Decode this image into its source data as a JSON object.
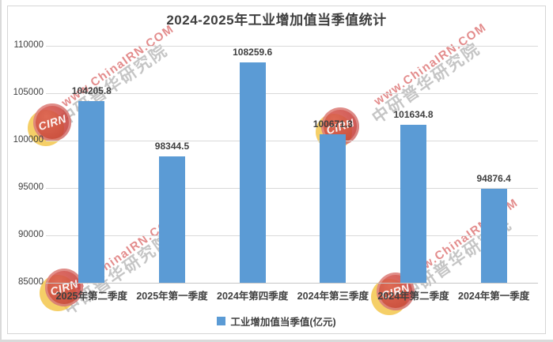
{
  "chart_data": {
    "type": "bar",
    "title": "2024-2025年工业增加值当季值统计",
    "categories": [
      "2025年第二季度",
      "2025年第一季度",
      "2024年第四季度",
      "2024年第三季度",
      "2024年第二季度",
      "2024年第一季度"
    ],
    "series": [
      {
        "name": "工业增加值当季值(亿元)",
        "values": [
          104205.8,
          98344.5,
          108259.6,
          100671.3,
          101634.8,
          94876.4
        ]
      }
    ],
    "data_labels": [
      "104205.8",
      "98344.5",
      "108259.6",
      "100671.3",
      "101634.8",
      "94876.4"
    ],
    "xlabel": "",
    "ylabel": "",
    "ylim": [
      85000,
      110000
    ],
    "yticks": [
      85000,
      90000,
      95000,
      100000,
      105000,
      110000
    ],
    "ytick_labels": [
      "85000",
      "90000",
      "95000",
      "100000",
      "105000",
      "110000"
    ],
    "grid": true,
    "legend_position": "bottom",
    "bar_color": "#5B9BD5"
  },
  "legend": {
    "label": "工业增加值当季值(亿元)"
  },
  "watermark": {
    "url_text": "www.ChinaIRN.COM",
    "org_text": "中研普华研究院",
    "logo_text": "CIRN"
  },
  "colors": {
    "bar": "#5B9BD5",
    "grid": "#D9D9D9",
    "axis": "#C6C6C6",
    "text": "#404040",
    "title": "#3F3F3F",
    "frame_border": "#D6D6D6",
    "watermark_red": "#D96666",
    "watermark_gray": "#969696",
    "logo_red": "#CD4840",
    "logo_yellow": "#F3C341"
  }
}
